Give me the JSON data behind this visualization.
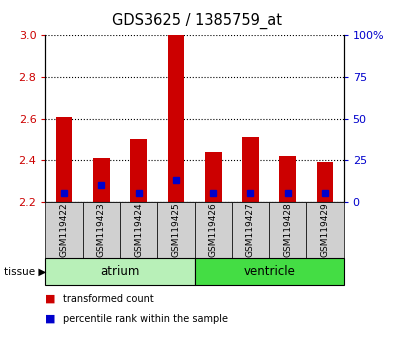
{
  "title": "GDS3625 / 1385759_at",
  "samples": [
    "GSM119422",
    "GSM119423",
    "GSM119424",
    "GSM119425",
    "GSM119426",
    "GSM119427",
    "GSM119428",
    "GSM119429"
  ],
  "transformed_counts": [
    2.61,
    2.41,
    2.5,
    3.0,
    2.44,
    2.51,
    2.42,
    2.39
  ],
  "percentile_ranks": [
    5,
    10,
    5,
    13,
    5,
    5,
    5,
    5
  ],
  "baseline": 2.2,
  "ylim_left": [
    2.2,
    3.0
  ],
  "ylim_right": [
    0,
    100
  ],
  "yticks_left": [
    2.2,
    2.4,
    2.6,
    2.8,
    3.0
  ],
  "yticks_right": [
    0,
    25,
    50,
    75,
    100
  ],
  "tissues": [
    {
      "label": "atrium",
      "start": 0,
      "end": 4,
      "color": "#b8f0b8"
    },
    {
      "label": "ventricle",
      "start": 4,
      "end": 8,
      "color": "#44dd44"
    }
  ],
  "bar_color": "#cc0000",
  "percentile_color": "#0000cc",
  "bar_width": 0.45,
  "background_color": "#ffffff",
  "tick_label_color_left": "#cc0000",
  "tick_label_color_right": "#0000cc",
  "sample_box_color": "#d0d0d0",
  "legend_items": [
    {
      "label": "transformed count",
      "color": "#cc0000"
    },
    {
      "label": "percentile rank within the sample",
      "color": "#0000cc"
    }
  ]
}
